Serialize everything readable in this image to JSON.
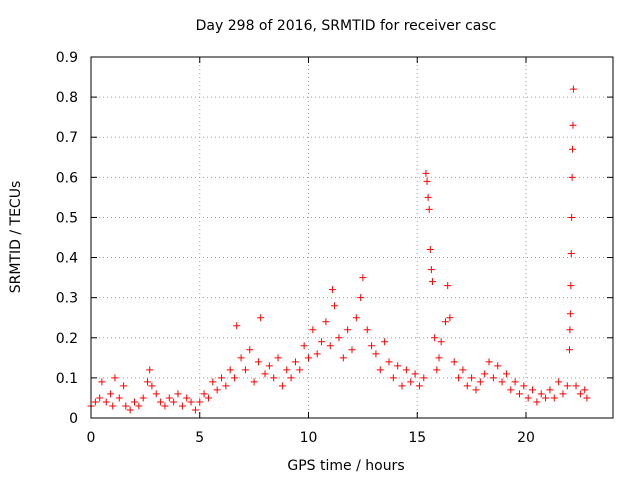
{
  "chart_data": {
    "type": "scatter",
    "title": "Day 298 of 2016, SRMTID for receiver casc",
    "xlabel": "GPS time / hours",
    "ylabel": "SRMTID / TECUs",
    "xlim": [
      0,
      24
    ],
    "ylim": [
      0,
      0.9
    ],
    "grid": true,
    "marker": "+",
    "series_color": "#ff0000",
    "x_ticks": [
      {
        "value": 0,
        "label": "0"
      },
      {
        "value": 5,
        "label": "5"
      },
      {
        "value": 10,
        "label": "10"
      },
      {
        "value": 15,
        "label": "15"
      },
      {
        "value": 20,
        "label": "20"
      }
    ],
    "y_ticks": [
      {
        "value": 0,
        "label": "0"
      },
      {
        "value": 0.1,
        "label": "0.1"
      },
      {
        "value": 0.2,
        "label": "0.2"
      },
      {
        "value": 0.3,
        "label": "0.3"
      },
      {
        "value": 0.4,
        "label": "0.4"
      },
      {
        "value": 0.5,
        "label": "0.5"
      },
      {
        "value": 0.6,
        "label": "0.6"
      },
      {
        "value": 0.7,
        "label": "0.7"
      },
      {
        "value": 0.8,
        "label": "0.8"
      },
      {
        "value": 0.9,
        "label": "0.9"
      }
    ],
    "points": [
      [
        0.0,
        0.03
      ],
      [
        0.2,
        0.04
      ],
      [
        0.4,
        0.05
      ],
      [
        0.5,
        0.09
      ],
      [
        0.7,
        0.04
      ],
      [
        0.9,
        0.06
      ],
      [
        1.0,
        0.03
      ],
      [
        1.1,
        0.1
      ],
      [
        1.3,
        0.05
      ],
      [
        1.5,
        0.08
      ],
      [
        1.6,
        0.03
      ],
      [
        1.8,
        0.02
      ],
      [
        2.0,
        0.04
      ],
      [
        2.2,
        0.03
      ],
      [
        2.4,
        0.05
      ],
      [
        2.6,
        0.09
      ],
      [
        2.7,
        0.12
      ],
      [
        2.8,
        0.08
      ],
      [
        3.0,
        0.06
      ],
      [
        3.2,
        0.04
      ],
      [
        3.4,
        0.03
      ],
      [
        3.6,
        0.05
      ],
      [
        3.8,
        0.04
      ],
      [
        4.0,
        0.06
      ],
      [
        4.2,
        0.03
      ],
      [
        4.4,
        0.05
      ],
      [
        4.6,
        0.04
      ],
      [
        4.8,
        0.02
      ],
      [
        5.0,
        0.04
      ],
      [
        5.2,
        0.06
      ],
      [
        5.4,
        0.05
      ],
      [
        5.6,
        0.09
      ],
      [
        5.8,
        0.07
      ],
      [
        6.0,
        0.1
      ],
      [
        6.2,
        0.08
      ],
      [
        6.4,
        0.12
      ],
      [
        6.6,
        0.1
      ],
      [
        6.7,
        0.23
      ],
      [
        6.9,
        0.15
      ],
      [
        7.1,
        0.12
      ],
      [
        7.3,
        0.17
      ],
      [
        7.5,
        0.09
      ],
      [
        7.7,
        0.14
      ],
      [
        7.8,
        0.25
      ],
      [
        8.0,
        0.11
      ],
      [
        8.2,
        0.13
      ],
      [
        8.4,
        0.1
      ],
      [
        8.6,
        0.15
      ],
      [
        8.8,
        0.08
      ],
      [
        9.0,
        0.12
      ],
      [
        9.2,
        0.1
      ],
      [
        9.4,
        0.14
      ],
      [
        9.6,
        0.12
      ],
      [
        9.8,
        0.18
      ],
      [
        10.0,
        0.15
      ],
      [
        10.2,
        0.22
      ],
      [
        10.4,
        0.16
      ],
      [
        10.6,
        0.19
      ],
      [
        10.8,
        0.24
      ],
      [
        11.0,
        0.18
      ],
      [
        11.1,
        0.32
      ],
      [
        11.2,
        0.28
      ],
      [
        11.4,
        0.2
      ],
      [
        11.6,
        0.15
      ],
      [
        11.8,
        0.22
      ],
      [
        12.0,
        0.17
      ],
      [
        12.2,
        0.25
      ],
      [
        12.4,
        0.3
      ],
      [
        12.5,
        0.35
      ],
      [
        12.7,
        0.22
      ],
      [
        12.9,
        0.18
      ],
      [
        13.1,
        0.16
      ],
      [
        13.3,
        0.12
      ],
      [
        13.5,
        0.19
      ],
      [
        13.7,
        0.14
      ],
      [
        13.9,
        0.1
      ],
      [
        14.1,
        0.13
      ],
      [
        14.3,
        0.08
      ],
      [
        14.5,
        0.12
      ],
      [
        14.7,
        0.09
      ],
      [
        14.9,
        0.11
      ],
      [
        15.1,
        0.08
      ],
      [
        15.3,
        0.1
      ],
      [
        15.4,
        0.61
      ],
      [
        15.45,
        0.59
      ],
      [
        15.5,
        0.55
      ],
      [
        15.55,
        0.52
      ],
      [
        15.6,
        0.42
      ],
      [
        15.65,
        0.37
      ],
      [
        15.7,
        0.34
      ],
      [
        15.8,
        0.2
      ],
      [
        15.9,
        0.12
      ],
      [
        16.0,
        0.15
      ],
      [
        16.1,
        0.19
      ],
      [
        16.3,
        0.24
      ],
      [
        16.4,
        0.33
      ],
      [
        16.5,
        0.25
      ],
      [
        16.7,
        0.14
      ],
      [
        16.9,
        0.1
      ],
      [
        17.1,
        0.12
      ],
      [
        17.3,
        0.08
      ],
      [
        17.5,
        0.1
      ],
      [
        17.7,
        0.07
      ],
      [
        17.9,
        0.09
      ],
      [
        18.1,
        0.11
      ],
      [
        18.3,
        0.14
      ],
      [
        18.5,
        0.1
      ],
      [
        18.7,
        0.13
      ],
      [
        18.9,
        0.09
      ],
      [
        19.1,
        0.11
      ],
      [
        19.3,
        0.07
      ],
      [
        19.5,
        0.09
      ],
      [
        19.7,
        0.06
      ],
      [
        19.9,
        0.08
      ],
      [
        20.1,
        0.05
      ],
      [
        20.3,
        0.07
      ],
      [
        20.5,
        0.04
      ],
      [
        20.7,
        0.06
      ],
      [
        20.9,
        0.05
      ],
      [
        21.1,
        0.07
      ],
      [
        21.3,
        0.05
      ],
      [
        21.5,
        0.09
      ],
      [
        21.7,
        0.06
      ],
      [
        21.9,
        0.08
      ],
      [
        22.0,
        0.17
      ],
      [
        22.02,
        0.22
      ],
      [
        22.04,
        0.26
      ],
      [
        22.06,
        0.33
      ],
      [
        22.08,
        0.41
      ],
      [
        22.1,
        0.5
      ],
      [
        22.12,
        0.6
      ],
      [
        22.14,
        0.67
      ],
      [
        22.16,
        0.73
      ],
      [
        22.18,
        0.82
      ],
      [
        22.3,
        0.08
      ],
      [
        22.5,
        0.06
      ],
      [
        22.7,
        0.07
      ],
      [
        22.8,
        0.05
      ]
    ]
  }
}
